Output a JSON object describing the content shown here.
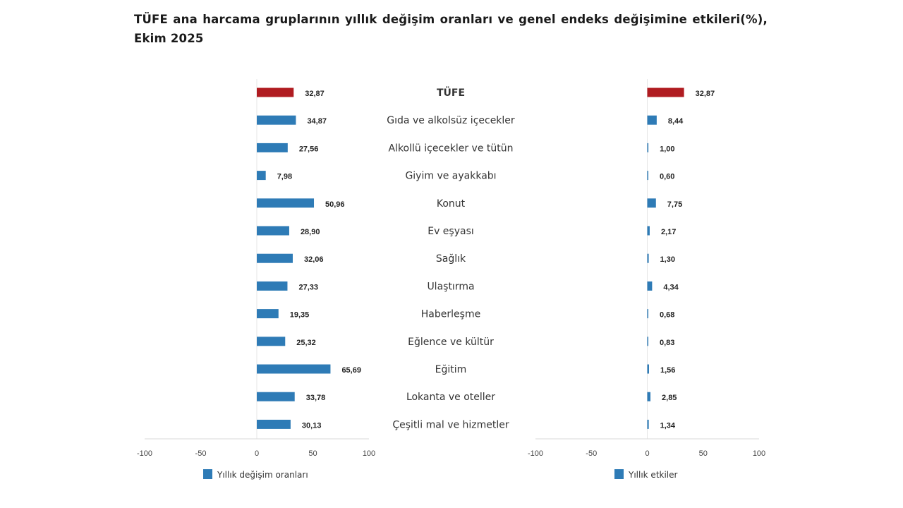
{
  "title": "TÜFE ana harcama gruplarının yıllık değişim oranları ve genel endeks değişimine etkileri(%), Ekim 2025",
  "colors": {
    "highlight": "#b01c21",
    "series": "#2e7bb6",
    "axis": "#d9d9d9"
  },
  "chart_data": [
    {
      "type": "bar",
      "orientation": "horizontal",
      "categories": [
        "TÜFE",
        "Gıda ve alkolsüz içecekler",
        "Alkollü içecekler ve tütün",
        "Giyim ve ayakkabı",
        "Konut",
        "Ev eşyası",
        "Sağlık",
        "Ulaştırma",
        "Haberleşme",
        "Eğlence ve kültür",
        "Eğitim",
        "Lokanta ve oteller",
        "Çeşitli mal ve hizmetler"
      ],
      "series": [
        {
          "name": "Yıllık değişim oranları",
          "values": [
            32.87,
            34.87,
            27.56,
            7.98,
            50.96,
            28.9,
            32.06,
            27.33,
            19.35,
            25.32,
            65.69,
            33.78,
            30.13
          ]
        }
      ],
      "data_labels": [
        "32,87",
        "34,87",
        "27,56",
        "7,98",
        "50,96",
        "28,90",
        "32,06",
        "27,33",
        "19,35",
        "25,32",
        "65,69",
        "33,78",
        "30,13"
      ],
      "xlim": [
        -100,
        100
      ],
      "xticks": [
        "-100",
        "-50",
        "0",
        "50",
        "100"
      ],
      "legend": "bottom-left"
    },
    {
      "type": "bar",
      "orientation": "horizontal",
      "series": [
        {
          "name": "Yıllık etkiler",
          "values": [
            32.87,
            8.44,
            1.0,
            0.6,
            7.75,
            2.17,
            1.3,
            4.34,
            0.68,
            0.83,
            1.56,
            2.85,
            1.34
          ]
        }
      ],
      "data_labels": [
        "32,87",
        "8,44",
        "1,00",
        "0,60",
        "7,75",
        "2,17",
        "1,30",
        "4,34",
        "0,68",
        "0,83",
        "1,56",
        "2,85",
        "1,34"
      ],
      "xlim": [
        -100,
        100
      ],
      "xticks": [
        "-100",
        "-50",
        "0",
        "50",
        "100"
      ],
      "legend": "bottom-right"
    }
  ]
}
